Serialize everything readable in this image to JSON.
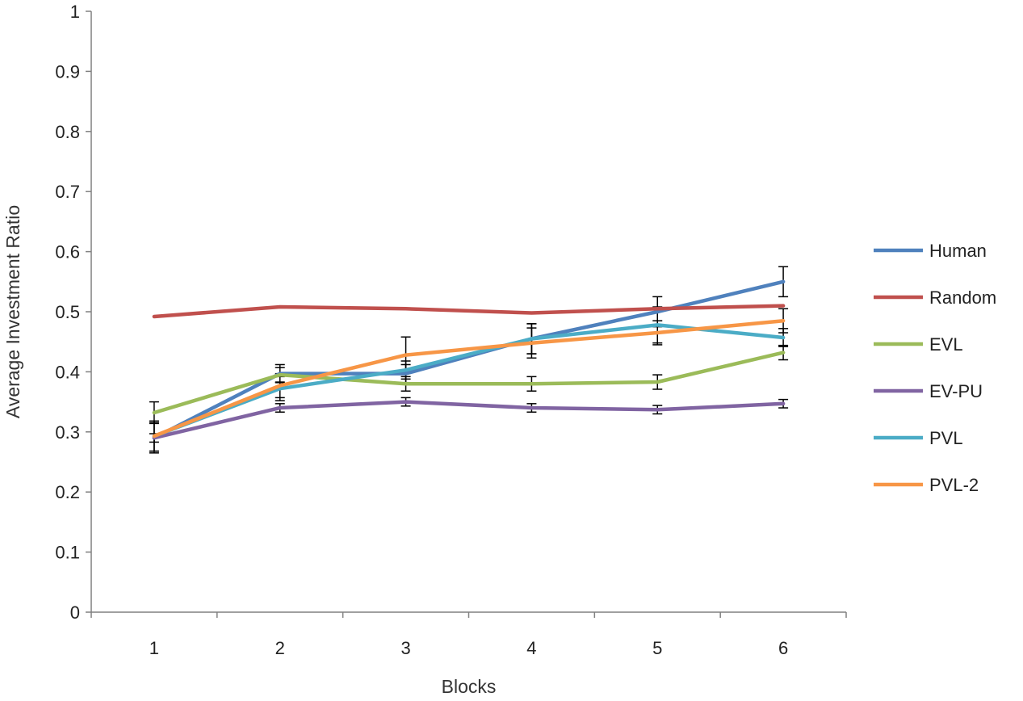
{
  "chart_data": {
    "type": "line",
    "xlabel": "Blocks",
    "ylabel": "Average Investment Ratio",
    "categories": [
      "1",
      "2",
      "3",
      "4",
      "5",
      "6"
    ],
    "ylim": [
      0,
      1
    ],
    "yticks": [
      "0",
      "0.1",
      "0.2",
      "0.3",
      "0.4",
      "0.5",
      "0.6",
      "0.7",
      "0.8",
      "0.9",
      "1"
    ],
    "grid": false,
    "legend_position": "right",
    "series": [
      {
        "name": "Human",
        "color": "#4F81BD",
        "values": [
          0.29,
          0.397,
          0.397,
          0.455,
          0.5,
          0.55
        ],
        "errors": [
          0.025,
          0.015,
          0.015,
          0.025,
          0.025,
          0.025
        ]
      },
      {
        "name": "Random",
        "color": "#C0504D",
        "values": [
          0.492,
          0.508,
          0.505,
          0.498,
          0.505,
          0.51
        ],
        "errors": [
          0.0,
          0.0,
          0.0,
          0.0,
          0.0,
          0.0
        ]
      },
      {
        "name": "EVL",
        "color": "#9BBB59",
        "values": [
          0.332,
          0.395,
          0.38,
          0.38,
          0.383,
          0.432
        ],
        "errors": [
          0.018,
          0.012,
          0.012,
          0.012,
          0.012,
          0.012
        ]
      },
      {
        "name": "EV-PU",
        "color": "#8064A2",
        "values": [
          0.29,
          0.34,
          0.35,
          0.34,
          0.337,
          0.347
        ],
        "errors": [
          0.007,
          0.007,
          0.007,
          0.007,
          0.007,
          0.007
        ]
      },
      {
        "name": "PVL",
        "color": "#4BACC6",
        "values": [
          0.293,
          0.372,
          0.403,
          0.455,
          0.478,
          0.457
        ],
        "errors": [
          0.025,
          0.02,
          0.015,
          0.025,
          0.03,
          0.015
        ]
      },
      {
        "name": "PVL-2",
        "color": "#F79646",
        "values": [
          0.293,
          0.377,
          0.428,
          0.448,
          0.465,
          0.485
        ],
        "errors": [
          0.025,
          0.02,
          0.03,
          0.025,
          0.02,
          0.02
        ]
      }
    ]
  }
}
